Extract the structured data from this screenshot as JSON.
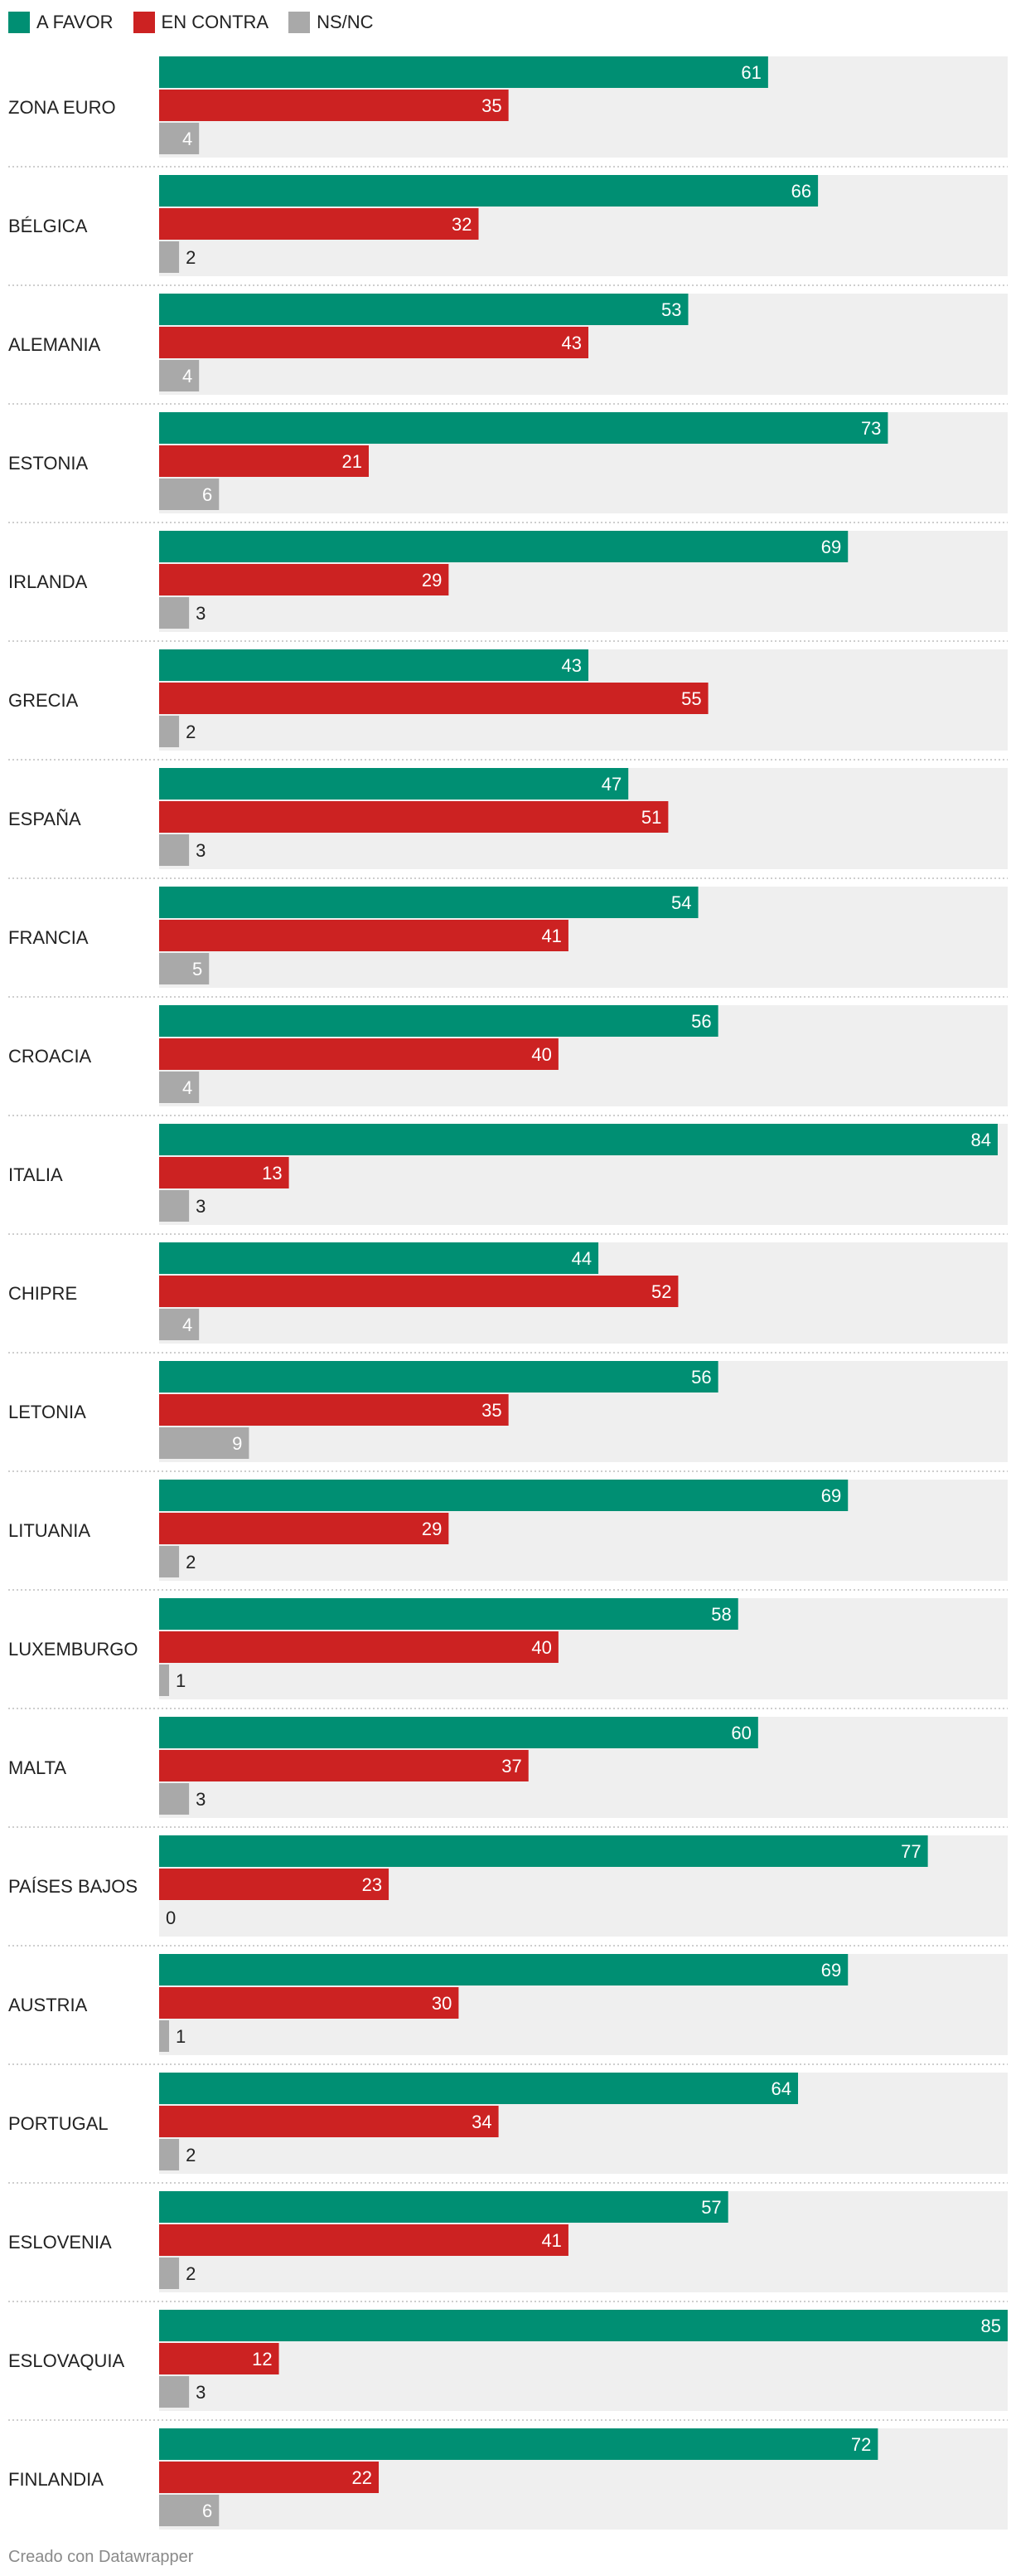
{
  "legend": [
    {
      "label": "A FAVOR",
      "color": "#008f73"
    },
    {
      "label": "EN CONTRA",
      "color": "#cc2222"
    },
    {
      "label": "NS/NC",
      "color": "#a9a9a9"
    }
  ],
  "footer": "Creado con Datawrapper",
  "chart_data": {
    "type": "bar",
    "orientation": "horizontal",
    "xlim": [
      0,
      85
    ],
    "categories": [
      "ZONA EURO",
      "BÉLGICA",
      "ALEMANIA",
      "ESTONIA",
      "IRLANDA",
      "GRECIA",
      "ESPAÑA",
      "FRANCIA",
      "CROACIA",
      "ITALIA",
      "CHIPRE",
      "LETONIA",
      "LITUANIA",
      "LUXEMBURGO",
      "MALTA",
      "PAÍSES BAJOS",
      "AUSTRIA",
      "PORTUGAL",
      "ESLOVENIA",
      "ESLOVAQUIA",
      "FINLANDIA"
    ],
    "series": [
      {
        "name": "A FAVOR",
        "color": "#008f73",
        "values": [
          61,
          66,
          53,
          73,
          69,
          43,
          47,
          54,
          56,
          84,
          44,
          56,
          69,
          58,
          60,
          77,
          69,
          64,
          57,
          85,
          72
        ]
      },
      {
        "name": "EN CONTRA",
        "color": "#cc2222",
        "values": [
          35,
          32,
          43,
          21,
          29,
          55,
          51,
          41,
          40,
          13,
          52,
          35,
          29,
          40,
          37,
          23,
          30,
          34,
          41,
          12,
          22
        ]
      },
      {
        "name": "NS/NC",
        "color": "#a9a9a9",
        "values": [
          4,
          2,
          4,
          6,
          3,
          2,
          3,
          5,
          4,
          3,
          4,
          9,
          2,
          1,
          3,
          0,
          1,
          2,
          2,
          3,
          6
        ]
      }
    ],
    "background_color": "#efefef"
  }
}
